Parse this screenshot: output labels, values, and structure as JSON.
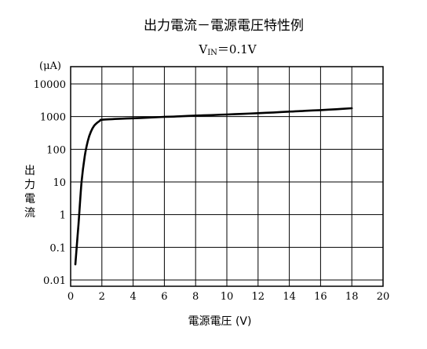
{
  "chart_data": {
    "type": "line",
    "title": "出力電流－電源電圧特性例",
    "subtitle_main": "V",
    "subtitle_sub": "IN",
    "subtitle_rest": "＝0.1V",
    "y_unit": "(μA)",
    "ylabel_chars": [
      "出",
      "力",
      "電",
      "流"
    ],
    "xlabel": "電源電圧 (V)",
    "y_scale": "log",
    "ylim": [
      0.01,
      10000
    ],
    "xlim": [
      0,
      20
    ],
    "x_ticks": [
      "0",
      "2",
      "4",
      "6",
      "8",
      "10",
      "12",
      "14",
      "16",
      "18",
      "20"
    ],
    "y_ticks": [
      "0.01",
      "0.1",
      "1",
      "10",
      "100",
      "1000",
      "10000"
    ],
    "grid": true,
    "series": [
      {
        "x": [
          0.3,
          0.5,
          0.7,
          0.9,
          1.1,
          1.3,
          1.5,
          1.7,
          1.9,
          2.0,
          3,
          4,
          5,
          6,
          7,
          8,
          9,
          10,
          11,
          12,
          13,
          14,
          15,
          16,
          17,
          18
        ],
        "y": [
          0.03,
          0.5,
          10,
          60,
          180,
          350,
          520,
          650,
          760,
          800,
          850,
          890,
          930,
          980,
          1020,
          1070,
          1110,
          1160,
          1210,
          1270,
          1340,
          1420,
          1500,
          1580,
          1680,
          1800
        ]
      }
    ]
  }
}
